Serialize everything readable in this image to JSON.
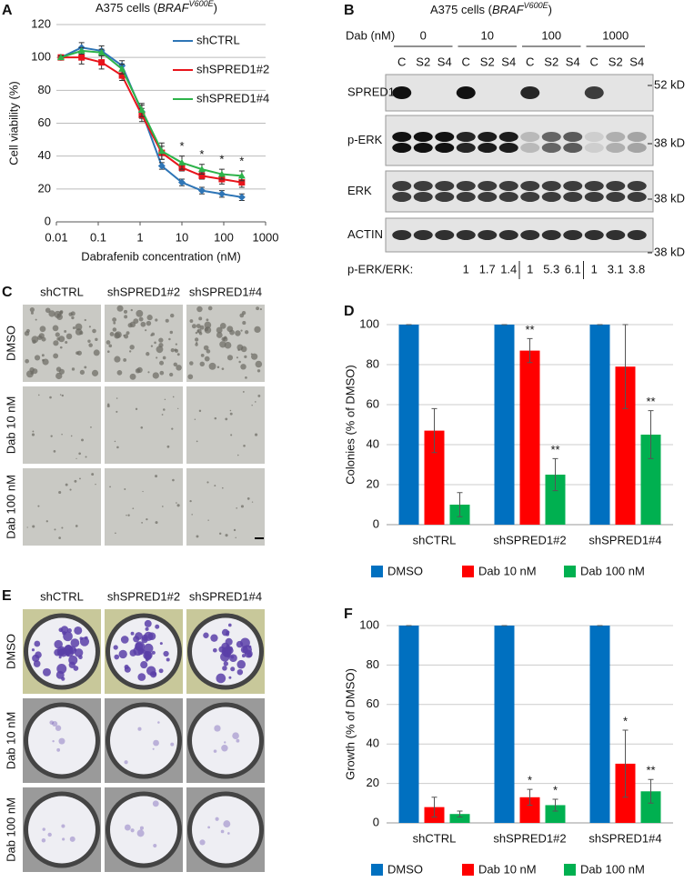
{
  "panels": [
    "A",
    "B",
    "C",
    "D",
    "E",
    "F"
  ],
  "chart_data": [
    {
      "type": "line",
      "title": [
        "A375 cells (",
        "BRAF",
        "V600E",
        ")"
      ],
      "xlabel": "Dabrafenib concentration (nM)",
      "ylabel": "Cell viability (%)",
      "x": [
        0.0128,
        0.04,
        0.12,
        0.37,
        1.1,
        3.3,
        10,
        30,
        90,
        270
      ],
      "xscale": "log",
      "xlim": [
        0.01,
        1000
      ],
      "xticks": [
        0.01,
        0.1,
        1,
        10,
        100,
        1000
      ],
      "ylim": [
        0,
        120
      ],
      "yticks": [
        0,
        20,
        40,
        60,
        80,
        100,
        120
      ],
      "grid": true,
      "legend": "upper right",
      "annotations": [
        null,
        null,
        null,
        null,
        null,
        null,
        "*",
        "*",
        "*",
        "*"
      ],
      "series": [
        {
          "name": "shCTRL",
          "color": "#2e75b6",
          "marker": "diamond",
          "values": [
            100,
            106,
            104,
            95,
            67,
            34,
            24,
            19,
            17,
            15
          ],
          "errors": [
            1,
            3,
            3,
            3,
            4,
            2,
            2,
            2,
            2,
            2
          ]
        },
        {
          "name": "shSPRED1#2",
          "color": "#e8141b",
          "marker": "square",
          "values": [
            100,
            100,
            97,
            89,
            65,
            42,
            33,
            28,
            26,
            24
          ],
          "errors": [
            1,
            4,
            4,
            3,
            4,
            4,
            2,
            2,
            3,
            3
          ]
        },
        {
          "name": "shSPRED1#4",
          "color": "#2db34a",
          "marker": "triangle",
          "values": [
            100,
            104,
            103,
            93,
            68,
            43,
            36,
            32,
            29,
            28
          ],
          "errors": [
            1,
            2,
            2,
            3,
            4,
            5,
            4,
            3,
            3,
            3
          ]
        }
      ]
    },
    {
      "type": "bar",
      "ylabel": "Colonies (% of DMSO)",
      "categories": [
        "shCTRL",
        "shSPRED1#2",
        "shSPRED1#4"
      ],
      "ylim": [
        0,
        100
      ],
      "yticks": [
        0,
        20,
        40,
        60,
        80,
        100
      ],
      "grid": true,
      "legend": "bottom",
      "series": [
        {
          "name": "DMSO",
          "color": "#0070c0",
          "values": [
            100,
            100,
            100
          ],
          "errors": [
            0,
            0,
            0
          ],
          "stars": [
            null,
            null,
            null
          ]
        },
        {
          "name": "Dab 10 nM",
          "color": "#ff0000",
          "values": [
            47,
            87,
            79
          ],
          "errors": [
            11,
            6,
            21
          ],
          "stars": [
            null,
            "**",
            null
          ]
        },
        {
          "name": "Dab 100 nM",
          "color": "#00b050",
          "values": [
            10,
            25,
            45
          ],
          "errors": [
            6,
            8,
            12
          ],
          "stars": [
            null,
            "**",
            "**"
          ]
        }
      ]
    },
    {
      "type": "bar",
      "ylabel": "Growth (% of DMSO)",
      "categories": [
        "shCTRL",
        "shSPRED1#2",
        "shSPRED1#4"
      ],
      "ylim": [
        0,
        100
      ],
      "yticks": [
        0,
        20,
        40,
        60,
        80,
        100
      ],
      "grid": true,
      "legend": "bottom",
      "series": [
        {
          "name": "DMSO",
          "color": "#0070c0",
          "values": [
            100,
            100,
            100
          ],
          "errors": [
            0,
            0,
            0
          ],
          "stars": [
            null,
            null,
            null
          ]
        },
        {
          "name": "Dab 10 nM",
          "color": "#ff0000",
          "values": [
            8,
            13,
            30
          ],
          "errors": [
            5,
            4,
            17
          ],
          "stars": [
            null,
            "*",
            "*"
          ]
        },
        {
          "name": "Dab 100 nM",
          "color": "#00b050",
          "values": [
            4.5,
            9,
            16
          ],
          "errors": [
            1.5,
            3,
            6
          ],
          "stars": [
            null,
            "*",
            "**"
          ]
        }
      ]
    }
  ],
  "blot": {
    "title": [
      "A375 cells (",
      "BRAF",
      "V600E",
      ")"
    ],
    "dose_label": "Dab (nM)",
    "doses": [
      "0",
      "10",
      "100",
      "1000"
    ],
    "lanes": [
      "C",
      "S2",
      "S4"
    ],
    "rows": [
      "SPRED1",
      "p-ERK",
      "ERK",
      "ACTIN"
    ],
    "markers": [
      "52 kD",
      "38 kD",
      "38 kD",
      "38 kD"
    ],
    "ratio_label": "p-ERK/ERK:",
    "ratios": [
      "1",
      "1.7",
      "1.4",
      "1",
      "5.3",
      "6.1",
      "1",
      "3.1",
      "3.8"
    ]
  },
  "colony_images": {
    "columns": [
      "shCTRL",
      "shSPRED1#2",
      "shSPRED1#4"
    ],
    "rows": [
      "DMSO",
      "Dab 10 nM",
      "Dab 100 nM"
    ]
  },
  "well_images": {
    "columns": [
      "shCTRL",
      "shSPRED1#2",
      "shSPRED1#4"
    ],
    "rows": [
      "DMSO",
      "Dab 10 nM",
      "Dab 100 nM"
    ]
  }
}
